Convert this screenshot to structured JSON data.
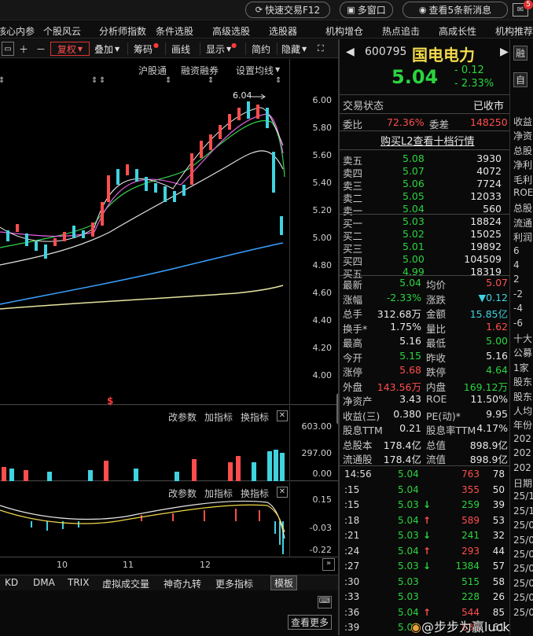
{
  "topbar": {
    "quick_trade": "快速交易F12",
    "multi_window": "多窗口",
    "news": "查看5条新消息",
    "news_badge": "5"
  },
  "menu": [
    "核心内参",
    "个股风云",
    "分析师指数",
    "条件选股",
    "高级选股",
    "选股器",
    "机构增仓",
    "热点追击",
    "高成长性",
    "机构推荐"
  ],
  "toolbar": {
    "fuquan": "复权",
    "overlay": "叠加",
    "chips": "筹码",
    "draw": "画线",
    "display": "显示",
    "simple": "简约",
    "hide": "隐藏"
  },
  "chart": {
    "tabs": [
      "沪股通",
      "融资融券",
      "设置均线"
    ],
    "high_label": "6.04",
    "price_ticks": [
      "6.00",
      "5.80",
      "5.60",
      "5.40",
      "5.20",
      "5.00",
      "4.80",
      "4.60",
      "4.40",
      "4.20",
      "4.00"
    ],
    "vol_header": [
      "改参数",
      "加指标",
      "换指标"
    ],
    "vol_ticks": [
      "603.00",
      "297.00",
      "0.00"
    ],
    "macd_header": [
      "改参数",
      "加指标",
      "换指标"
    ],
    "macd_ticks": [
      "0.15",
      "-0.03",
      "-0.22"
    ],
    "months": [
      "10",
      "11",
      "12"
    ],
    "dollar_mark": "$",
    "bottom_tabs": [
      "KD",
      "DMA",
      "TRIX",
      "虚拟成交量",
      "神奇九转",
      "更多指标",
      "模板"
    ]
  },
  "stock": {
    "code": "600795",
    "name": "国电电力",
    "price": "5.04",
    "change": "- 0.12",
    "pct": "- 2.33%",
    "rong": "融",
    "zi": "自"
  },
  "status": {
    "label": "交易状态",
    "value": "已收市"
  },
  "weibi": {
    "label1": "委比",
    "v1": "72.36%",
    "label2": "委差",
    "v2": "148250"
  },
  "l2_link": "购买L2查看十档行情",
  "asks": [
    {
      "l": "卖五",
      "p": "5.08",
      "v": "3930"
    },
    {
      "l": "卖四",
      "p": "5.07",
      "v": "4072"
    },
    {
      "l": "卖三",
      "p": "5.06",
      "v": "7724"
    },
    {
      "l": "卖二",
      "p": "5.05",
      "v": "12033"
    },
    {
      "l": "卖一",
      "p": "5.04",
      "v": "560"
    }
  ],
  "bids": [
    {
      "l": "买一",
      "p": "5.03",
      "v": "18824"
    },
    {
      "l": "买二",
      "p": "5.02",
      "v": "15025"
    },
    {
      "l": "买三",
      "p": "5.01",
      "v": "19892"
    },
    {
      "l": "买四",
      "p": "5.00",
      "v": "104509"
    },
    {
      "l": "买五",
      "p": "4.99",
      "v": "18319"
    }
  ],
  "stats": [
    {
      "a": "最新",
      "av": "5.04",
      "ac": "green",
      "b": "均价",
      "bv": "5.07",
      "bc": "red"
    },
    {
      "a": "涨幅",
      "av": "-2.33%",
      "ac": "green",
      "b": "涨跌",
      "bv": "▼0.12",
      "bc": "cyan"
    },
    {
      "a": "总手",
      "av": "312.68万",
      "ac": "white",
      "b": "金额",
      "bv": "15.85亿",
      "bc": "cyan"
    },
    {
      "a": "换手*",
      "av": "1.75%",
      "ac": "white",
      "b": "量比",
      "bv": "1.62",
      "bc": "red"
    },
    {
      "a": "最高",
      "av": "5.16",
      "ac": "white",
      "b": "最低",
      "bv": "5.00",
      "bc": "green"
    },
    {
      "a": "今开",
      "av": "5.15",
      "ac": "green",
      "b": "昨收",
      "bv": "5.16",
      "bc": "white"
    },
    {
      "a": "涨停",
      "av": "5.68",
      "ac": "red",
      "b": "跌停",
      "bv": "4.64",
      "bc": "green"
    },
    {
      "a": "外盘",
      "av": "143.56万",
      "ac": "red",
      "b": "内盘",
      "bv": "169.12万",
      "bc": "green"
    },
    {
      "a": "净资产",
      "av": "3.43",
      "ac": "white",
      "b": "ROE",
      "bv": "11.50%",
      "bc": "white"
    },
    {
      "a": "收益(三)",
      "av": "0.380",
      "ac": "white",
      "b": "PE(动)*",
      "bv": "9.95",
      "bc": "white"
    },
    {
      "a": "股息TTM",
      "av": "0.21",
      "ac": "white",
      "b": "股息率TTM",
      "bv": "4.17%",
      "bc": "white"
    },
    {
      "a": "总股本",
      "av": "178.4亿",
      "ac": "white",
      "b": "总值",
      "bv": "898.9亿",
      "bc": "white"
    },
    {
      "a": "流通股",
      "av": "178.4亿",
      "ac": "white",
      "b": "流值",
      "bv": "898.9亿",
      "bc": "white"
    }
  ],
  "ticks": [
    {
      "t": "14:56",
      "p": "5.04",
      "pc": "green",
      "arrow": "",
      "v": "763",
      "vc": "red",
      "n": "78"
    },
    {
      "t": ":15",
      "p": "5.04",
      "pc": "green",
      "arrow": "",
      "v": "355",
      "vc": "red",
      "n": "50"
    },
    {
      "t": ":15",
      "p": "5.03",
      "pc": "green",
      "arrow": "↓",
      "v": "259",
      "vc": "green",
      "n": "39"
    },
    {
      "t": ":18",
      "p": "5.04",
      "pc": "green",
      "arrow": "↑",
      "v": "589",
      "vc": "red",
      "n": "53"
    },
    {
      "t": ":21",
      "p": "5.03",
      "pc": "green",
      "arrow": "↓",
      "v": "241",
      "vc": "green",
      "n": "32"
    },
    {
      "t": ":24",
      "p": "5.04",
      "pc": "green",
      "arrow": "↑",
      "v": "293",
      "vc": "red",
      "n": "44"
    },
    {
      "t": ":27",
      "p": "5.03",
      "pc": "green",
      "arrow": "↓",
      "v": "1384",
      "vc": "green",
      "n": "57"
    },
    {
      "t": ":30",
      "p": "5.03",
      "pc": "green",
      "arrow": "",
      "v": "515",
      "vc": "green",
      "n": "58"
    },
    {
      "t": ":33",
      "p": "5.03",
      "pc": "green",
      "arrow": "",
      "v": "228",
      "vc": "green",
      "n": "26"
    },
    {
      "t": ":36",
      "p": "5.04",
      "pc": "green",
      "arrow": "↑",
      "v": "544",
      "vc": "red",
      "n": "85"
    },
    {
      "t": ":39",
      "p": "5.04",
      "pc": "green",
      "arrow": "",
      "v": "833",
      "vc": "red",
      "n": "61"
    }
  ],
  "far": [
    "收益",
    "净资",
    "总股",
    "净利",
    "毛利",
    "ROE",
    "总股",
    "流通",
    "利润",
    "6",
    "4",
    "2",
    "-2",
    "-4",
    "-6",
    "十大",
    "公募",
    "1家",
    "股东",
    "股东",
    "人均",
    "年份",
    "202",
    "202",
    "202",
    "日期",
    "25/1",
    "25/1",
    "25/0",
    "25/0",
    "25/0",
    "25/0",
    "25/0",
    "25/0",
    "25/0"
  ],
  "watermark": "@步步为赢luck",
  "more_btn": "查看更多"
}
